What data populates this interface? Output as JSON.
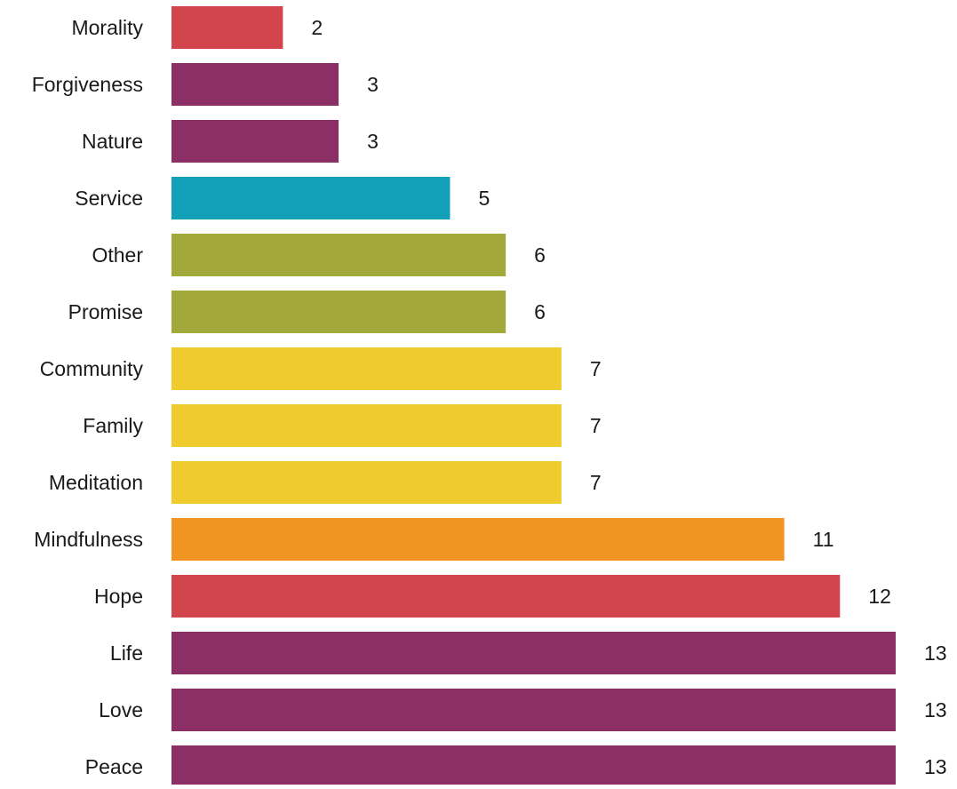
{
  "chart_data": {
    "type": "bar",
    "orientation": "horizontal",
    "title": "",
    "xlabel": "",
    "ylabel": "",
    "xlim": [
      0,
      13
    ],
    "grid": false,
    "legend": "none",
    "categories": [
      "Morality",
      "Forgiveness",
      "Nature",
      "Service",
      "Other",
      "Promise",
      "Community",
      "Family",
      "Meditation",
      "Mindfulness",
      "Hope",
      "Life",
      "Love",
      "Peace"
    ],
    "values": [
      2,
      3,
      3,
      5,
      6,
      6,
      7,
      7,
      7,
      11,
      12,
      13,
      13,
      13
    ],
    "colors": [
      "#d3454d",
      "#8c2f67",
      "#8c2f67",
      "#12a0b8",
      "#a3a83a",
      "#a3a83a",
      "#f0cb2e",
      "#f0cb2e",
      "#f0cb2e",
      "#f09422",
      "#d3454d",
      "#8c2f67",
      "#8c2f67",
      "#8c2f67"
    ],
    "data_labels": [
      "2",
      "3",
      "3",
      "5",
      "6",
      "6",
      "7",
      "7",
      "7",
      "11",
      "12",
      "13",
      "13",
      "13"
    ]
  }
}
